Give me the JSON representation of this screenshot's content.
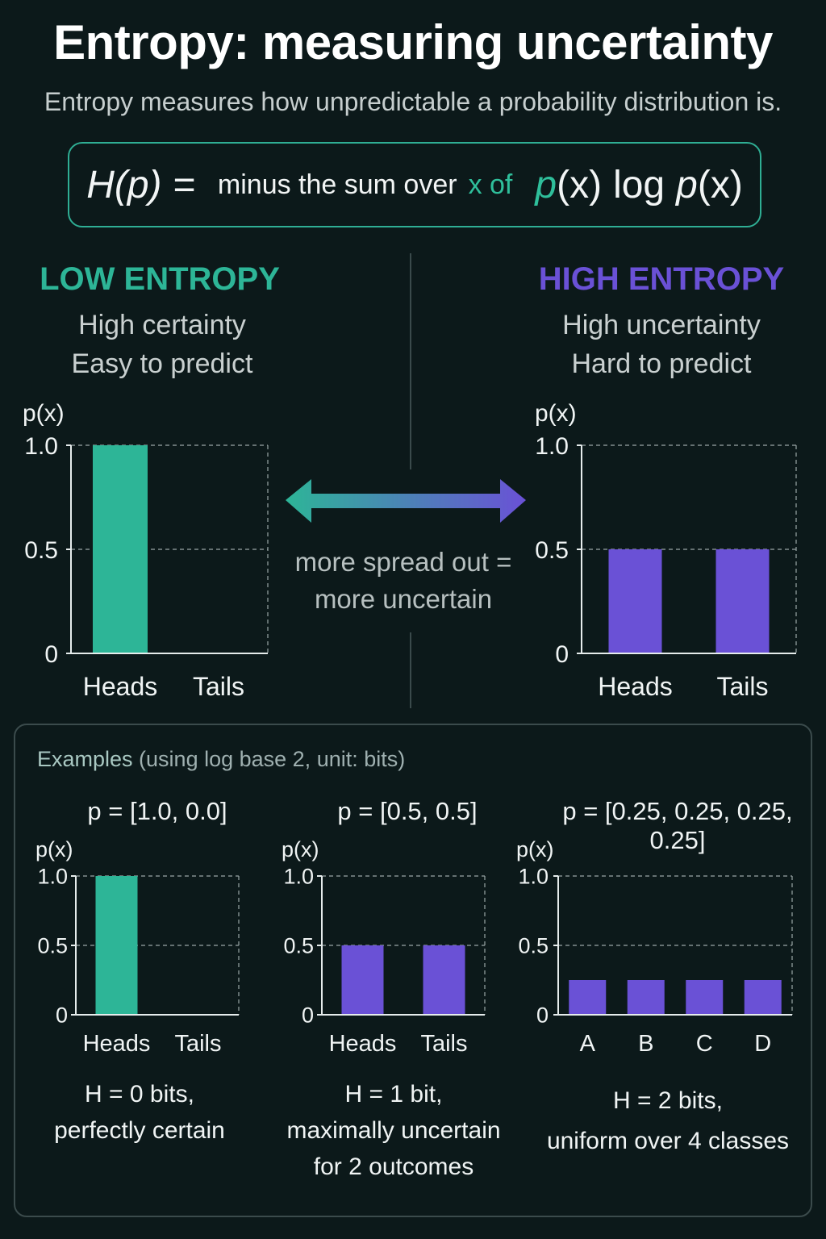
{
  "title": "Entropy: measuring uncertainty",
  "subtitle": "Entropy measures how unpredictable a probability distribution is.",
  "formula": {
    "lhs": "H(p) =",
    "text_before": "minus the sum over",
    "text_x_of": "x of",
    "p1": "p",
    "x1": "(x)",
    "log": "log",
    "p2": "p",
    "x2": "(x)"
  },
  "low": {
    "heading": "LOW ENTROPY",
    "line1": "High certainty",
    "line2": "Easy to predict",
    "color": "#2db597"
  },
  "high": {
    "heading": "HIGH ENTROPY",
    "line1": "High uncertainty",
    "line2": "Hard to predict",
    "color": "#6a51d6"
  },
  "arrow": {
    "line1": "more spread out =",
    "line2": "more uncertain"
  },
  "examples": {
    "title_a": "Examples",
    "title_b": " (using log base 2, unit: bits)",
    "ex1": {
      "p": "p = [1.0, 0.0]",
      "h1": "H = 0 bits,",
      "h2": "perfectly certain"
    },
    "ex2": {
      "p": "p = [0.5, 0.5]",
      "h1": "H = 1 bit,",
      "h2": "maximally uncertain",
      "h3": "for 2 outcomes"
    },
    "ex3": {
      "p": "p = [0.25, 0.25, 0.25, 0.25]",
      "h1": "H = 2 bits,",
      "h2": "uniform over 4 classes"
    }
  },
  "chart_data": [
    {
      "id": "low-entropy-chart",
      "type": "bar",
      "ylabel": "p(x)",
      "categories": [
        "Heads",
        "Tails"
      ],
      "values": [
        1.0,
        0.0
      ],
      "ylim": [
        0,
        1
      ],
      "yticks": [
        "1.0",
        "0.5",
        "0"
      ],
      "color": "#2db597"
    },
    {
      "id": "high-entropy-chart",
      "type": "bar",
      "ylabel": "p(x)",
      "categories": [
        "Heads",
        "Tails"
      ],
      "values": [
        0.5,
        0.5
      ],
      "ylim": [
        0,
        1
      ],
      "yticks": [
        "1.0",
        "0.5",
        "0"
      ],
      "color": "#6a51d6"
    },
    {
      "id": "example-1-chart",
      "type": "bar",
      "ylabel": "p(x)",
      "categories": [
        "Heads",
        "Tails"
      ],
      "values": [
        1.0,
        0.0
      ],
      "ylim": [
        0,
        1
      ],
      "yticks": [
        "1.0",
        "0.5",
        "0"
      ],
      "color": "#2db597"
    },
    {
      "id": "example-2-chart",
      "type": "bar",
      "ylabel": "p(x)",
      "categories": [
        "Heads",
        "Tails"
      ],
      "values": [
        0.5,
        0.5
      ],
      "ylim": [
        0,
        1
      ],
      "yticks": [
        "1.0",
        "0.5",
        "0"
      ],
      "color": "#6a51d6"
    },
    {
      "id": "example-3-chart",
      "type": "bar",
      "ylabel": "p(x)",
      "categories": [
        "A",
        "B",
        "C",
        "D"
      ],
      "values": [
        0.25,
        0.25,
        0.25,
        0.25
      ],
      "ylim": [
        0,
        1
      ],
      "yticks": [
        "1.0",
        "0.5",
        "0"
      ],
      "color": "#6a51d6"
    }
  ]
}
